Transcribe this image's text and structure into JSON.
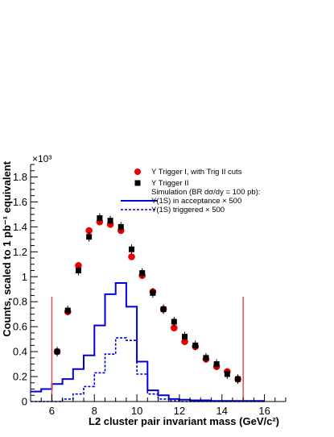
{
  "chart_data": {
    "type": "scatter",
    "xlabel": "L2 cluster pair invariant mass (GeV/c²)",
    "ylabel": "Counts, scaled to 1 pb⁻¹ equivalent",
    "y_multiplier_label": "×10³",
    "xlim": [
      5,
      17
    ],
    "ylim": [
      0,
      1.9
    ],
    "x_ticks": [
      6,
      8,
      10,
      12,
      14,
      16
    ],
    "y_ticks": [
      0,
      0.2,
      0.4,
      0.6,
      0.8,
      1,
      1.2,
      1.4,
      1.6,
      1.8
    ],
    "y_tick_labels": [
      "0",
      "0.2",
      "0.4",
      "0.6",
      "0.8",
      "1",
      "1.2",
      "1.4",
      "1.6",
      "1.8"
    ],
    "cut_lines": [
      6,
      15
    ],
    "cut_line_color": "#e05050",
    "series": [
      {
        "name": "Υ Trigger I, with Trig II cuts",
        "kind": "points",
        "marker": "circle",
        "color": "#ee0000",
        "x": [
          6.25,
          6.75,
          7.25,
          7.75,
          8.25,
          8.75,
          9.25,
          9.75,
          10.25,
          10.75,
          11.25,
          11.75,
          12.25,
          12.75,
          13.25,
          13.75,
          14.25,
          14.75
        ],
        "y": [
          0.4,
          0.72,
          1.09,
          1.37,
          1.44,
          1.42,
          1.37,
          1.16,
          1.01,
          0.88,
          0.74,
          0.59,
          0.48,
          0.44,
          0.34,
          0.28,
          0.24,
          0.18
        ]
      },
      {
        "name": "Υ Trigger II",
        "kind": "points",
        "marker": "square",
        "color": "#000000",
        "x": [
          6.25,
          6.75,
          7.25,
          7.75,
          8.25,
          8.75,
          9.25,
          9.75,
          10.25,
          10.75,
          11.25,
          11.75,
          12.25,
          12.75,
          13.25,
          13.75,
          14.25,
          14.75
        ],
        "y": [
          0.4,
          0.73,
          1.05,
          1.32,
          1.47,
          1.45,
          1.4,
          1.22,
          1.03,
          0.87,
          0.74,
          0.64,
          0.52,
          0.45,
          0.35,
          0.3,
          0.22,
          0.18
        ]
      },
      {
        "name": "Υ(1S) in acceptance × 500",
        "kind": "histogram",
        "style": "solid",
        "color": "#0000dd",
        "bin_edges": [
          5,
          5.5,
          6,
          6.5,
          7,
          7.5,
          8,
          8.5,
          9,
          9.5,
          10,
          10.5,
          11,
          11.5,
          12,
          12.5,
          13,
          13.5,
          14,
          14.5,
          15,
          15.5,
          16
        ],
        "values": [
          0.08,
          0.1,
          0.14,
          0.18,
          0.26,
          0.37,
          0.61,
          0.86,
          0.95,
          0.76,
          0.32,
          0.09,
          0.05,
          0.02,
          0.015,
          0.01,
          0.01,
          0.005,
          0.005,
          0.005,
          0.005,
          0.005
        ]
      },
      {
        "name": "Υ(1S) triggered × 500",
        "kind": "histogram",
        "style": "dashed",
        "color": "#0000dd",
        "bin_edges": [
          5,
          5.5,
          6,
          6.5,
          7,
          7.5,
          8,
          8.5,
          9,
          9.5,
          10,
          10.5,
          11,
          11.5,
          12,
          12.5,
          13,
          13.5,
          14,
          14.5,
          15,
          15.5,
          16
        ],
        "values": [
          0,
          0,
          0,
          0.02,
          0.06,
          0.12,
          0.23,
          0.38,
          0.51,
          0.49,
          0.22,
          0.06,
          0.02,
          0.005,
          0,
          0,
          0,
          0,
          0,
          0,
          0,
          0
        ]
      }
    ],
    "legend": {
      "placement": "top-right",
      "entries": [
        "Υ Trigger I, with Trig II cuts",
        "Υ Trigger II",
        "Simulation (BR dσ/dy = 100 pb):",
        "Υ(1S) in acceptance × 500",
        "Υ(1S) triggered × 500"
      ]
    }
  }
}
